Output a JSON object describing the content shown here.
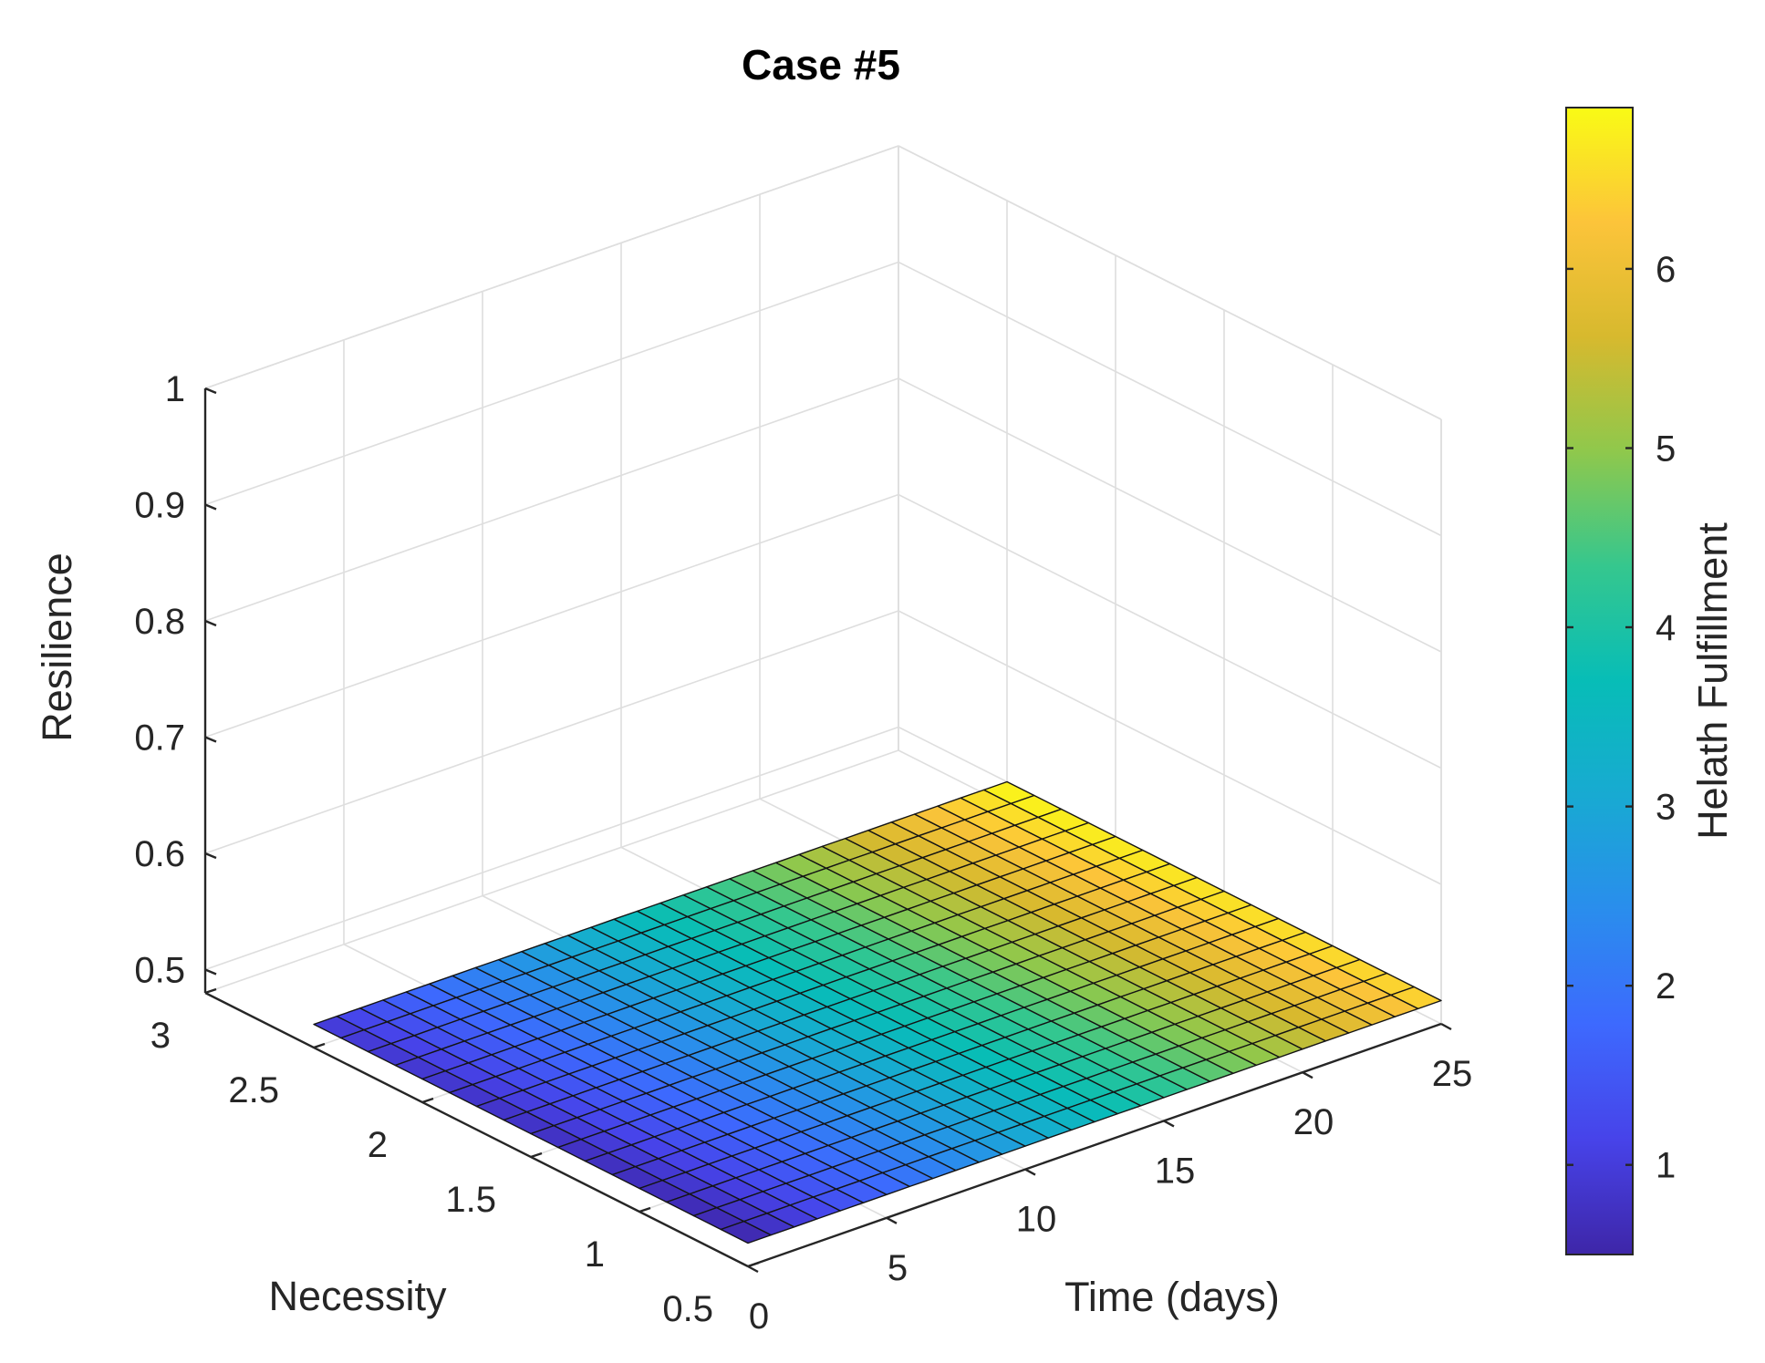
{
  "chart_data": {
    "type": "surface",
    "title": "Case #5",
    "xlabel": "Time (days)",
    "ylabel": "Necessity",
    "zlabel": "Resilience",
    "xlim": [
      0,
      25
    ],
    "ylim": [
      0.5,
      3
    ],
    "zlim": [
      0.48,
      1
    ],
    "x_ticks": [
      "0",
      "5",
      "10",
      "15",
      "20",
      "25"
    ],
    "y_ticks": [
      "0.5",
      "1",
      "1.5",
      "2",
      "2.5",
      "3"
    ],
    "z_ticks": [
      "0.5",
      "0.6",
      "0.7",
      "0.8",
      "0.9",
      "1"
    ],
    "x_range": [
      0,
      25
    ],
    "y_range": [
      0.5,
      2.5
    ],
    "x_steps": 30,
    "y_steps": 16,
    "resilience_value": 0.5,
    "helath_fulfillment_at_corners": {
      "x0_y0.5": 0.5,
      "x0_y2.5": 0.9,
      "x25_y0.5": 6.5,
      "x25_y2.5": 6.9
    },
    "grid": true,
    "colormap": "parula",
    "colorbar": {
      "label": "Helath Fulfillment",
      "limits": [
        0.5,
        6.9
      ],
      "ticks": [
        "1",
        "2",
        "3",
        "4",
        "5",
        "6"
      ],
      "tick_values": [
        1,
        2,
        3,
        4,
        5,
        6
      ],
      "placement": "right"
    }
  }
}
